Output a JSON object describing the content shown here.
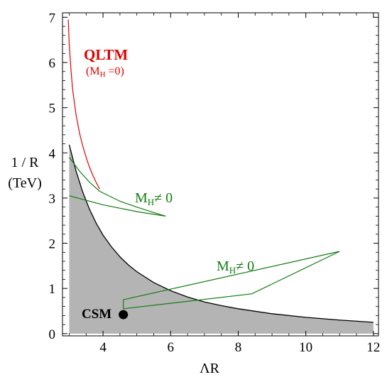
{
  "chart_data": {
    "type": "line",
    "xlabel": "ΛR",
    "ylabel_line1": "1 / R",
    "ylabel_line2": "(TeV)",
    "xlim": [
      2.8,
      12.15
    ],
    "ylim": [
      -0.05,
      7.1
    ],
    "xticks": [
      4,
      6,
      8,
      10,
      12
    ],
    "yticks": [
      0,
      1,
      2,
      3,
      4,
      5,
      6,
      7
    ],
    "grid": false,
    "colors": {
      "black_curve": "#000000",
      "red_curve": "#e00000",
      "green_curve": "#117d11",
      "shade": "#b4b4b4"
    },
    "series": [
      {
        "style": "black",
        "x": [
          3.0,
          3.2,
          3.4,
          3.6,
          3.8,
          4.0,
          4.25,
          4.5,
          4.75,
          5.0,
          5.5,
          6.0,
          6.5,
          7.0,
          7.5,
          8.0,
          9.0,
          10.0,
          11.0,
          12.0
        ],
        "y": [
          4.18,
          3.6,
          3.13,
          2.75,
          2.44,
          2.18,
          1.92,
          1.7,
          1.52,
          1.37,
          1.13,
          0.95,
          0.81,
          0.7,
          0.62,
          0.55,
          0.44,
          0.36,
          0.3,
          0.25
        ]
      },
      {
        "style": "red",
        "x": [
          2.97,
          3.0,
          3.05,
          3.1,
          3.2,
          3.3,
          3.4,
          3.5,
          3.6,
          3.7,
          3.8,
          3.9
        ],
        "y": [
          6.95,
          6.4,
          5.85,
          5.4,
          4.85,
          4.45,
          4.15,
          3.9,
          3.68,
          3.5,
          3.34,
          3.2
        ]
      },
      {
        "style": "green",
        "x": [
          3.0,
          3.3,
          3.6,
          3.9,
          4.5,
          5.0,
          5.5,
          5.85
        ],
        "y": [
          3.9,
          3.6,
          3.35,
          3.15,
          2.93,
          2.8,
          2.68,
          2.6
        ]
      },
      {
        "style": "green",
        "x": [
          3.0,
          4.0,
          5.0,
          5.85
        ],
        "y": [
          3.05,
          2.85,
          2.7,
          2.6
        ]
      },
      {
        "style": "green",
        "x": [
          4.6,
          4.6,
          11.0,
          8.4,
          4.6
        ],
        "y": [
          0.55,
          0.75,
          1.82,
          0.88,
          0.55
        ]
      }
    ],
    "points": [
      {
        "label": "CSM",
        "x": 4.6,
        "y": 0.42
      }
    ],
    "annotations": {
      "qltm": "QLTM",
      "qltm_sub_open": "(M",
      "qltm_sub_h": "H",
      "qltm_sub_close": " =0)",
      "mh_upper_m": "M",
      "mh_upper_h": "H",
      "mh_upper_rest": "≠ 0",
      "mh_lower_m": "M",
      "mh_lower_h": "H",
      "mh_lower_rest": "≠ 0",
      "csm": "CSM"
    }
  }
}
